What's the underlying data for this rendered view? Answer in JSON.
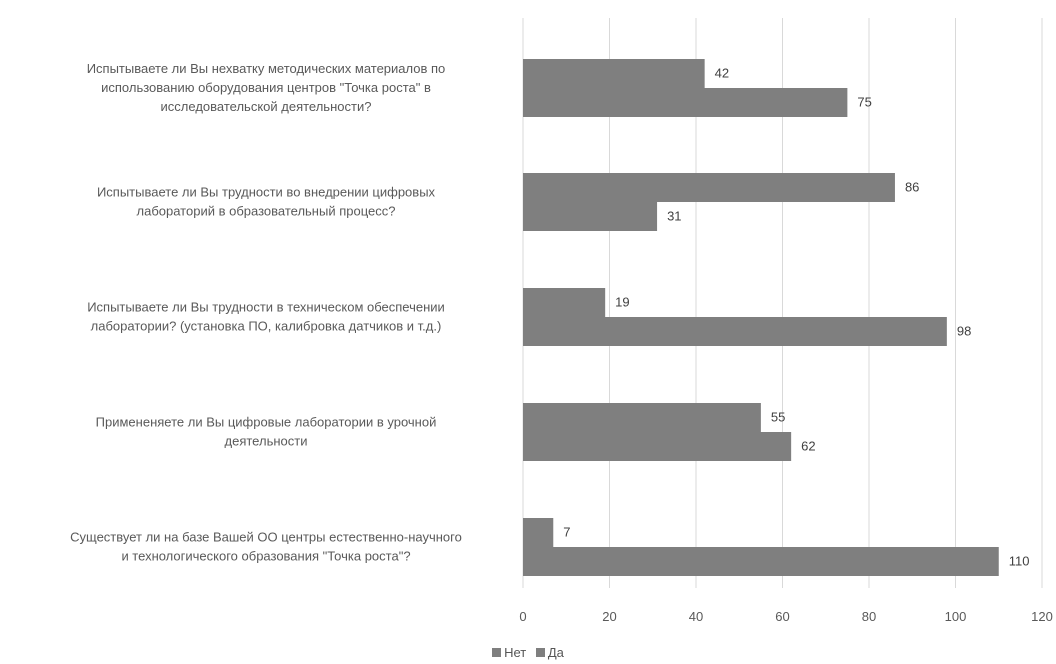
{
  "chart_data": {
    "type": "bar",
    "orientation": "horizontal",
    "categories": [
      [
        "Испытываете ли Вы нехватку методических материалов по",
        "использованию оборудования центров \"Точка роста\" в",
        "исследовательской деятельности?"
      ],
      [
        "Испытываете ли Вы трудности во внедрении цифровых",
        "лабораторий в образовательный процесс?"
      ],
      [
        "Испытываете ли Вы трудности в техническом обеспечении",
        "лаборатории? (установка ПО, калибровка датчиков и т.д.)"
      ],
      [
        "Примененяете ли Вы цифровые лаборатории в урочной",
        "деятельности"
      ],
      [
        "Существует ли на базе Вашей ОО центры естественно-научного",
        "и технологического образования \"Точка роста\"?"
      ]
    ],
    "series": [
      {
        "name": "Нет",
        "values": [
          42,
          86,
          19,
          55,
          7
        ]
      },
      {
        "name": "Да",
        "values": [
          75,
          31,
          98,
          62,
          110
        ]
      }
    ],
    "xlim": [
      0,
      120
    ],
    "ticks": [
      0,
      20,
      40,
      60,
      80,
      100,
      120
    ],
    "grid": true,
    "legend_position": "bottom",
    "bar_color": "#7f7f7f"
  }
}
